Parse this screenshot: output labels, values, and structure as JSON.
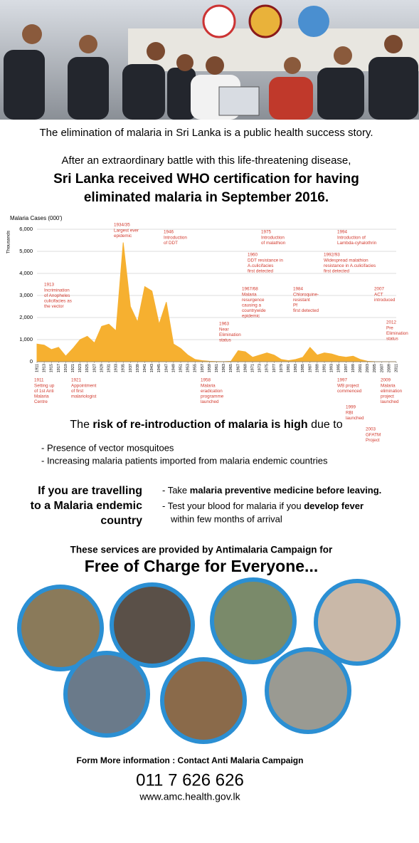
{
  "intro": "The elimination of malaria in Sri Lanka is a public health success story.",
  "headline": {
    "line1": "After an extraordinary battle with this life-threatening disease,",
    "line2": "Sri Lanka received WHO certification for having",
    "line3": "eliminated malaria in September 2016."
  },
  "chart_data": {
    "type": "area",
    "title": "Malaria Cases (000')",
    "ylabel": "Thousands",
    "color": "#f6b030",
    "grid": true,
    "x": [
      1911,
      1913,
      1915,
      1917,
      1919,
      1921,
      1923,
      1925,
      1927,
      1929,
      1931,
      1933,
      1935,
      1937,
      1939,
      1941,
      1943,
      1945,
      1947,
      1949,
      1951,
      1953,
      1955,
      1957,
      1959,
      1961,
      1963,
      1965,
      1967,
      1969,
      1971,
      1973,
      1975,
      1977,
      1979,
      1981,
      1983,
      1985,
      1987,
      1989,
      1991,
      1993,
      1995,
      1997,
      1999,
      2001,
      2003,
      2005,
      2007,
      2009,
      2011
    ],
    "values": [
      800,
      750,
      550,
      650,
      250,
      600,
      1000,
      1150,
      850,
      1600,
      1700,
      1400,
      5400,
      2500,
      1800,
      3400,
      3200,
      1700,
      2700,
      800,
      600,
      300,
      100,
      50,
      20,
      10,
      5,
      20,
      500,
      450,
      200,
      300,
      400,
      300,
      100,
      50,
      100,
      200,
      650,
      300,
      400,
      350,
      250,
      200,
      250,
      100,
      20,
      5,
      0,
      0,
      0
    ],
    "xlim": [
      1911,
      2011
    ],
    "xticks": [
      1911,
      1913,
      1915,
      1917,
      1919,
      1921,
      1923,
      1925,
      1927,
      1929,
      1931,
      1933,
      1935,
      1937,
      1939,
      1941,
      1943,
      1945,
      1947,
      1949,
      1951,
      1953,
      1955,
      1957,
      1959,
      1961,
      1963,
      1965,
      1967,
      1969,
      1971,
      1973,
      1975,
      1977,
      1979,
      1981,
      1983,
      1985,
      1987,
      1989,
      1991,
      1993,
      1995,
      1997,
      1999,
      2001,
      2003,
      2005,
      2007,
      2009,
      2011
    ],
    "ylim": [
      0,
      6000
    ],
    "yticks": [
      0,
      {
        "value": 1000,
        "label": "1,000"
      },
      {
        "value": 2000,
        "label": "2,000"
      },
      {
        "value": 3000,
        "label": "3,000"
      },
      {
        "value": 4000,
        "label": "4,000"
      },
      {
        "value": 5000,
        "label": "5,000"
      },
      {
        "value": 6000,
        "label": "6,000"
      }
    ],
    "annotations": [
      [
        "1913",
        "Incrimination",
        "of Anopheles",
        "culicifacies as",
        "the vector"
      ],
      [
        "1934/35",
        "Largest ever",
        "epidemic"
      ],
      [
        "1946",
        "Introduction",
        "of DDT"
      ],
      [
        "1975",
        "Introduction",
        "of malathion"
      ],
      [
        "1994",
        "Introduction of",
        "Lambda-cyhalothrin"
      ],
      [
        "1960",
        "DDT resistance in",
        "A.culicifacies",
        "first detected"
      ],
      [
        "1992/93",
        "Widespread malathion",
        "resistance in A.culicifacies",
        "first detected"
      ],
      [
        "1967/68",
        "Malaria",
        "resurgence",
        "causing a",
        "countrywide",
        "epidemic"
      ],
      [
        "1984",
        "Chloroquine-",
        "resistant",
        "Pf",
        "first detected"
      ],
      [
        "2007",
        "ACT",
        "introduced"
      ],
      [
        "1963",
        "Near",
        "Elimination",
        "status"
      ],
      [
        "2012",
        "Pre",
        "Elimination",
        "status"
      ],
      [
        "1911",
        "Setting up",
        "of 1st Anti",
        "Malaria",
        "Centre"
      ],
      [
        "1921",
        "Appointment",
        "of first",
        "malariologist"
      ],
      [
        "1958",
        "Malaria",
        "eradication",
        "programme",
        "launched"
      ],
      [
        "1997",
        "WB project",
        "commenced"
      ],
      [
        "2009",
        "Malaria",
        "elimination",
        "project",
        "launched"
      ],
      [
        "1999",
        "RBI",
        "launched"
      ],
      [
        "2003",
        "GFATM",
        "Project"
      ]
    ]
  },
  "risk": {
    "heading": [
      "The ",
      "risk of re-introduction of malaria is high",
      " due to"
    ],
    "bullets": [
      "- Presence of vector mosquitoes",
      "- Increasing malaria patients imported from malaria endemic countries"
    ]
  },
  "travel": {
    "left": [
      "If you are travelling",
      "to a Malaria endemic",
      "country"
    ],
    "tips": [
      [
        "- Take ",
        "malaria preventive medicine before leaving."
      ],
      [
        "- Test your blood for malaria if you ",
        "develop fever"
      ],
      [
        "within few months of arrival"
      ]
    ]
  },
  "services": {
    "line1": "These services are provided by Antimalaria Campaign for",
    "line2": "Free of Charge for Everyone..."
  },
  "contact": {
    "line": "Form More information : Contact Anti Malaria Campaign",
    "phone": "011 7 626 626",
    "website": "www.amc.health.gov.lk"
  }
}
